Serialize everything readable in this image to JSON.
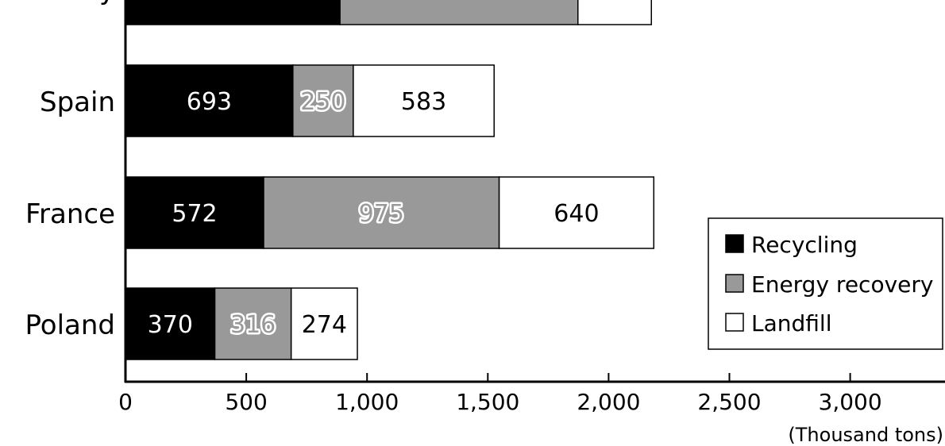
{
  "chart_data": {
    "type": "bar",
    "orientation": "horizontal",
    "stacked": true,
    "categories": [
      "Poland",
      "France",
      "Spain",
      "Italy"
    ],
    "series": [
      {
        "name": "Recycling",
        "color": "#000000",
        "values": [
          370,
          572,
          693,
          888
        ]
      },
      {
        "name": "Energy recovery",
        "color": "#999999",
        "values": [
          316,
          975,
          250,
          985
        ]
      },
      {
        "name": "Landfill",
        "color": "#ffffff",
        "values": [
          274,
          640,
          583,
          304
        ]
      }
    ],
    "x_ticks": [
      0,
      500,
      1000,
      1500,
      2000,
      2500,
      3000
    ],
    "x_tick_labels": [
      "0",
      "500",
      "1,000",
      "1,500",
      "2,000",
      "2,500",
      "3,000"
    ],
    "xlim": [
      0,
      3400
    ],
    "xlabel": "(Thousand tons)",
    "ylabel": "",
    "title": "",
    "legend_position": "bottom-right",
    "grid": false
  }
}
